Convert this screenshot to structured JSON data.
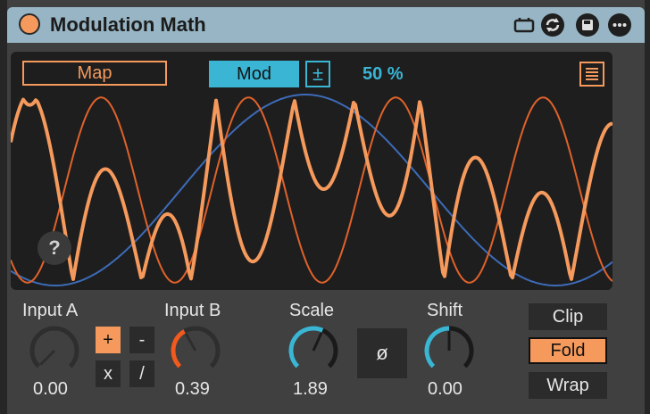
{
  "device": {
    "title": "Modulation Math",
    "accent": "#f59a5c",
    "cyan": "#3ab6d4"
  },
  "titlebar_icons": [
    "macro-icon",
    "swap-icon",
    "save-icon",
    "more-icon"
  ],
  "display": {
    "map_label": "Map",
    "mod_label": "Mod",
    "plusminus_label": "±",
    "percent_label": "50 %",
    "help_label": "?"
  },
  "inputs": {
    "input_a": {
      "label": "Input A",
      "value": "0.00",
      "level": 0.0
    },
    "input_b": {
      "label": "Input B",
      "value": "0.39",
      "level": 0.39
    },
    "scale": {
      "label": "Scale",
      "value": "1.89",
      "level": 0.59
    },
    "shift": {
      "label": "Shift",
      "value": "0.00",
      "level": 0.5
    }
  },
  "operators": {
    "add": "+",
    "subtract": "-",
    "multiply": "x",
    "divide": "/",
    "selected": "+"
  },
  "phase_label": "ø",
  "modes": {
    "clip": "Clip",
    "fold": "Fold",
    "wrap": "Wrap",
    "selected": "Fold"
  }
}
